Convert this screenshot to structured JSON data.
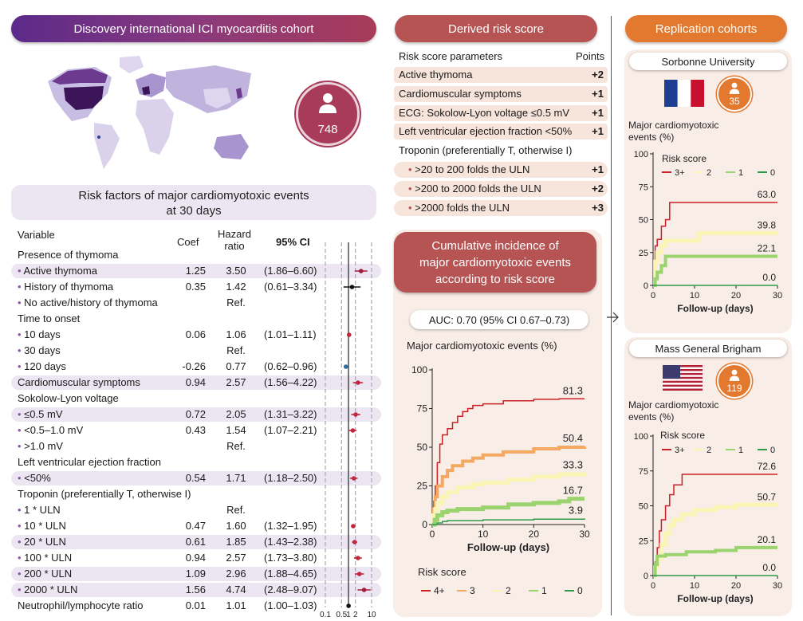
{
  "discovery": {
    "title": "Discovery international ICI myocarditis cohort",
    "patients": "748",
    "risk_factors_title": "Risk factors of major cardiomyotoxic events at 30 days",
    "table_headers": {
      "variable": "Variable",
      "coef": "Coef",
      "hr": "Hazard ratio",
      "ci": "95% CI"
    },
    "axis_ticks": [
      "0.1",
      "0.5",
      "1",
      "2",
      "10"
    ]
  },
  "risk_table": [
    {
      "label": "Presence of thymoma",
      "type": "group",
      "shade": false
    },
    {
      "label": "Active thymoma",
      "type": "item",
      "coef": "1.25",
      "hr": "3.50",
      "ci": "(1.86–6.60)",
      "shade": true,
      "est": 3.5,
      "lo": 1.86,
      "hi": 6.6,
      "color": "#a31b3a"
    },
    {
      "label": "History of thymoma",
      "type": "item",
      "coef": "0.35",
      "hr": "1.42",
      "ci": "(0.61–3.34)",
      "shade": false,
      "est": 1.42,
      "lo": 0.61,
      "hi": 3.34,
      "color": "#111111"
    },
    {
      "label": "No active/history of thymoma",
      "type": "item",
      "coef": "",
      "hr": "Ref.",
      "ci": "",
      "shade": false
    },
    {
      "label": "Time to onset",
      "type": "group",
      "shade": false
    },
    {
      "label": "10 days",
      "type": "item",
      "coef": "0.06",
      "hr": "1.06",
      "ci": "(1.01–1.11)",
      "shade": false,
      "est": 1.06,
      "lo": 1.01,
      "hi": 1.11,
      "color": "#c0263d"
    },
    {
      "label": "30 days",
      "type": "item",
      "coef": "",
      "hr": "Ref.",
      "ci": "",
      "shade": false
    },
    {
      "label": "120 days",
      "type": "item",
      "coef": "-0.26",
      "hr": "0.77",
      "ci": "(0.62–0.96)",
      "shade": false,
      "est": 0.77,
      "lo": 0.62,
      "hi": 0.96,
      "color": "#2f6ea8"
    },
    {
      "label": "Cardiomuscular symptoms",
      "type": "groupvalue",
      "coef": "0.94",
      "hr": "2.57",
      "ci": "(1.56–4.22)",
      "shade": true,
      "est": 2.57,
      "lo": 1.56,
      "hi": 4.22,
      "color": "#c0263d"
    },
    {
      "label": "Sokolow-Lyon voltage",
      "type": "group",
      "shade": false
    },
    {
      "label": "≤0.5 mV",
      "type": "item",
      "coef": "0.72",
      "hr": "2.05",
      "ci": "(1.31–3.22)",
      "shade": true,
      "est": 2.05,
      "lo": 1.31,
      "hi": 3.22,
      "color": "#c0263d"
    },
    {
      "label": "<0.5–1.0 mV",
      "type": "item",
      "coef": "0.43",
      "hr": "1.54",
      "ci": "(1.07–2.21)",
      "shade": false,
      "est": 1.54,
      "lo": 1.07,
      "hi": 2.21,
      "color": "#c0263d"
    },
    {
      "label": ">1.0 mV",
      "type": "item",
      "coef": "",
      "hr": "Ref.",
      "ci": "",
      "shade": false
    },
    {
      "label": "Left ventricular ejection fraction",
      "type": "group",
      "shade": false
    },
    {
      "label": "<50%",
      "type": "item",
      "coef": "0.54",
      "hr": "1.71",
      "ci": "(1.18–2.50)",
      "shade": true,
      "est": 1.71,
      "lo": 1.18,
      "hi": 2.5,
      "color": "#c0263d"
    },
    {
      "label": "Troponin (preferentially T, otherwise I)",
      "type": "group",
      "shade": false
    },
    {
      "label": "1 * ULN",
      "type": "item",
      "coef": "",
      "hr": "Ref.",
      "ci": "",
      "shade": false
    },
    {
      "label": "10 * ULN",
      "type": "item",
      "coef": "0.47",
      "hr": "1.60",
      "ci": "(1.32–1.95)",
      "shade": false,
      "est": 1.6,
      "lo": 1.32,
      "hi": 1.95,
      "color": "#c0263d"
    },
    {
      "label": "20 * ULN",
      "type": "item",
      "coef": "0.61",
      "hr": "1.85",
      "ci": "(1.43–2.38)",
      "shade": true,
      "est": 1.85,
      "lo": 1.43,
      "hi": 2.38,
      "color": "#c0263d"
    },
    {
      "label": "100 * ULN",
      "type": "item",
      "coef": "0.94",
      "hr": "2.57",
      "ci": "(1.73–3.80)",
      "shade": false,
      "est": 2.57,
      "lo": 1.73,
      "hi": 3.8,
      "color": "#c0263d"
    },
    {
      "label": "200 * ULN",
      "type": "item",
      "coef": "1.09",
      "hr": "2.96",
      "ci": "(1.88–4.65)",
      "shade": true,
      "est": 2.96,
      "lo": 1.88,
      "hi": 4.65,
      "color": "#c0263d"
    },
    {
      "label": "2000 * ULN",
      "type": "item",
      "coef": "1.56",
      "hr": "4.74",
      "ci": "(2.48–9.07)",
      "shade": true,
      "est": 4.74,
      "lo": 2.48,
      "hi": 9.07,
      "color": "#a31b3a"
    },
    {
      "label": "Neutrophil/lymphocyte ratio",
      "type": "groupvalue",
      "coef": "0.01",
      "hr": "1.01",
      "ci": "(1.00–1.03)",
      "shade": false,
      "est": 1.01,
      "lo": 1.0,
      "hi": 1.03,
      "color": "#111111"
    }
  ],
  "derived": {
    "title": "Derived risk score",
    "params_header": "Risk score parameters",
    "points_header": "Points",
    "params": [
      {
        "label": "Active thymoma",
        "points": "+2",
        "shade": true,
        "sub": false
      },
      {
        "label": "Cardiomuscular symptoms",
        "points": "+1",
        "shade": true,
        "sub": false
      },
      {
        "label": "ECG: Sokolow-Lyon voltage ≤0.5 mV",
        "points": "+1",
        "shade": true,
        "sub": false
      },
      {
        "label": "Left ventricular ejection fraction <50%",
        "points": "+1",
        "shade": true,
        "sub": false
      },
      {
        "label": "Troponin (preferentially T, otherwise I)",
        "points": "",
        "shade": false,
        "sub": false
      },
      {
        "label": ">20 to 200 folds the ULN",
        "points": "+1",
        "shade": true,
        "sub": true
      },
      {
        "label": ">200 to 2000 folds the ULN",
        "points": "+2",
        "shade": true,
        "sub": true
      },
      {
        "label": ">2000 folds the ULN",
        "points": "+3",
        "shade": true,
        "sub": true
      }
    ],
    "cumulative_title": "Cumulative incidence of major cardiomyotoxic events according to risk score",
    "auc": "AUC: 0.70 (95% CI 0.67–0.73)"
  },
  "replication": {
    "title": "Replication cohorts",
    "sorbonne": {
      "name": "Sorbonne University",
      "patients": "35"
    },
    "mgb": {
      "name": "Mass General Brigham",
      "patients": "119"
    }
  },
  "colors": {
    "score4": "#cc2027",
    "score3": "#f5a862",
    "score2": "#fbf5b5",
    "score1": "#9bd46e",
    "score0": "#2e9a4a"
  },
  "chart_data": [
    {
      "type": "line",
      "title": "",
      "ylabel": "Major cardiomyotoxic events (%)",
      "xlabel": "Follow-up (days)",
      "xlim": [
        0,
        30
      ],
      "ylim": [
        0,
        100
      ],
      "xticks": [
        0,
        10,
        20,
        30
      ],
      "yticks": [
        0,
        25,
        50,
        75,
        100
      ],
      "legend_title": "Risk score",
      "series": [
        {
          "name": "4+",
          "color": "#cc2027",
          "end_label": "81.3",
          "points": [
            [
              0,
              0
            ],
            [
              0.3,
              15
            ],
            [
              0.6,
              25
            ],
            [
              1,
              40
            ],
            [
              1.5,
              52
            ],
            [
              2,
              58
            ],
            [
              3,
              62
            ],
            [
              4,
              66
            ],
            [
              5,
              70
            ],
            [
              6,
              73
            ],
            [
              7,
              75
            ],
            [
              8,
              77
            ],
            [
              10,
              78
            ],
            [
              14,
              80
            ],
            [
              20,
              81
            ],
            [
              25,
              81.3
            ],
            [
              30,
              81.3
            ]
          ]
        },
        {
          "name": "3",
          "color": "#f5a862",
          "end_label": "50.4",
          "points": [
            [
              0,
              0
            ],
            [
              0.3,
              10
            ],
            [
              0.6,
              18
            ],
            [
              1,
              25
            ],
            [
              2,
              31
            ],
            [
              3,
              35
            ],
            [
              4,
              38
            ],
            [
              6,
              41
            ],
            [
              8,
              43
            ],
            [
              10,
              45
            ],
            [
              14,
              47
            ],
            [
              20,
              49
            ],
            [
              25,
              50
            ],
            [
              30,
              50.4
            ]
          ]
        },
        {
          "name": "2",
          "color": "#fbf5b5",
          "end_label": "33.3",
          "points": [
            [
              0,
              0
            ],
            [
              0.3,
              6
            ],
            [
              0.6,
              10
            ],
            [
              1,
              14
            ],
            [
              2,
              18
            ],
            [
              3,
              21
            ],
            [
              5,
              24
            ],
            [
              8,
              26
            ],
            [
              10,
              27
            ],
            [
              15,
              29
            ],
            [
              20,
              31
            ],
            [
              25,
              32.5
            ],
            [
              30,
              33.3
            ]
          ]
        },
        {
          "name": "1",
          "color": "#9bd46e",
          "end_label": "16.7",
          "points": [
            [
              0,
              0
            ],
            [
              0.5,
              3
            ],
            [
              1,
              6
            ],
            [
              2,
              8
            ],
            [
              3,
              9
            ],
            [
              5,
              10
            ],
            [
              10,
              11
            ],
            [
              15,
              13
            ],
            [
              20,
              14
            ],
            [
              25,
              15
            ],
            [
              27,
              16.7
            ],
            [
              30,
              16.7
            ]
          ]
        },
        {
          "name": "0",
          "color": "#2e9a4a",
          "end_label": "3.9",
          "points": [
            [
              0,
              0
            ],
            [
              1,
              1
            ],
            [
              2,
              2
            ],
            [
              3,
              2.5
            ],
            [
              10,
              3
            ],
            [
              20,
              3.5
            ],
            [
              30,
              3.9
            ]
          ]
        }
      ]
    },
    {
      "type": "line",
      "title": "Sorbonne University",
      "ylabel": "Major cardiomyotoxic events (%)",
      "xlabel": "Follow-up (days)",
      "xlim": [
        0,
        30
      ],
      "ylim": [
        0,
        100
      ],
      "xticks": [
        0,
        10,
        20,
        30
      ],
      "yticks": [
        0,
        25,
        50,
        75,
        100
      ],
      "legend_title": "Risk score",
      "series": [
        {
          "name": "3+",
          "color": "#cc2027",
          "end_label": "63.0",
          "points": [
            [
              0,
              0
            ],
            [
              0.5,
              30
            ],
            [
              1,
              35
            ],
            [
              2,
              45
            ],
            [
              3,
              50
            ],
            [
              4,
              63
            ],
            [
              30,
              63
            ]
          ]
        },
        {
          "name": "2",
          "color": "#fbf5b5",
          "end_label": "39.8",
          "points": [
            [
              0,
              0
            ],
            [
              0.5,
              18
            ],
            [
              1,
              25
            ],
            [
              2,
              30
            ],
            [
              3,
              34
            ],
            [
              10,
              34
            ],
            [
              11,
              39.8
            ],
            [
              30,
              39.8
            ]
          ]
        },
        {
          "name": "1",
          "color": "#9bd46e",
          "end_label": "22.1",
          "points": [
            [
              0,
              0
            ],
            [
              0.5,
              5
            ],
            [
              1,
              10
            ],
            [
              2,
              15
            ],
            [
              3,
              22.1
            ],
            [
              30,
              22.1
            ]
          ]
        },
        {
          "name": "0",
          "color": "#2e9a4a",
          "end_label": "0.0",
          "points": [
            [
              0,
              0
            ],
            [
              30,
              0
            ]
          ]
        }
      ]
    },
    {
      "type": "line",
      "title": "Mass General Brigham",
      "ylabel": "Major cardiomyotoxic events (%)",
      "xlabel": "Follow-up (days)",
      "xlim": [
        0,
        30
      ],
      "ylim": [
        0,
        100
      ],
      "xticks": [
        0,
        10,
        20,
        30
      ],
      "yticks": [
        0,
        25,
        50,
        75,
        100
      ],
      "legend_title": "Risk score",
      "series": [
        {
          "name": "3+",
          "color": "#cc2027",
          "end_label": "72.6",
          "points": [
            [
              0,
              0
            ],
            [
              0.5,
              10
            ],
            [
              1,
              20
            ],
            [
              1.5,
              32
            ],
            [
              2,
              40
            ],
            [
              3,
              50
            ],
            [
              4,
              58
            ],
            [
              5,
              65
            ],
            [
              7,
              72.6
            ],
            [
              30,
              72.6
            ]
          ]
        },
        {
          "name": "2",
          "color": "#fbf5b5",
          "end_label": "50.7",
          "points": [
            [
              0,
              0
            ],
            [
              0.5,
              6
            ],
            [
              1,
              12
            ],
            [
              2,
              22
            ],
            [
              3,
              30
            ],
            [
              4,
              36
            ],
            [
              5,
              40
            ],
            [
              7,
              44
            ],
            [
              10,
              47
            ],
            [
              15,
              49
            ],
            [
              20,
              50.7
            ],
            [
              30,
              50.7
            ]
          ]
        },
        {
          "name": "1",
          "color": "#9bd46e",
          "end_label": "20.1",
          "points": [
            [
              0,
              0
            ],
            [
              0.5,
              8
            ],
            [
              1,
              14
            ],
            [
              3,
              15
            ],
            [
              8,
              17
            ],
            [
              15,
              18
            ],
            [
              20,
              20.1
            ],
            [
              30,
              20.1
            ]
          ]
        },
        {
          "name": "0",
          "color": "#2e9a4a",
          "end_label": "0.0",
          "points": [
            [
              0,
              0
            ],
            [
              30,
              0
            ]
          ]
        }
      ]
    }
  ]
}
